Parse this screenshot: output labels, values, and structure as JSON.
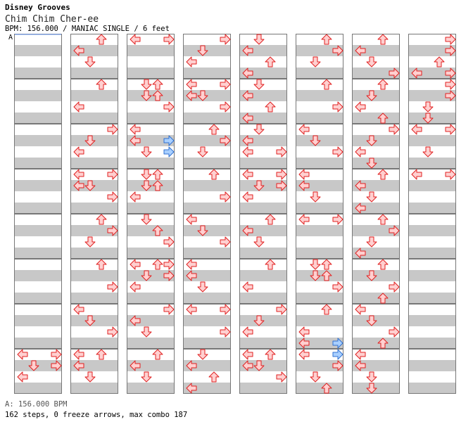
{
  "header": {
    "game": "Disney Grooves",
    "song": "Chim Chim Cher-ee",
    "info": "BPM: 156.000 / MANIAC SINGLE / 6 feet"
  },
  "section_marker": "A",
  "legend": {
    "bpm": "A: 156.000 BPM"
  },
  "stats": {
    "line": "162 steps, 0 freeze arrows, max combo 187",
    "steps": 162,
    "freeze_arrows": 0,
    "max_combo": 187
  },
  "colors": {
    "stripe": "#c8c8c8",
    "border": "#777777",
    "arrow_fill": "#ffd0d0",
    "arrow_stroke": "#e02020",
    "blue_fill": "#a8cfff",
    "blue_stroke": "#3070d0"
  },
  "chart_data": {
    "type": "step-chart",
    "columns": 8,
    "measures_per_column": 8,
    "lanes": [
      "left",
      "down",
      "up",
      "right"
    ],
    "rows_per_measure": 4,
    "notes": [
      {
        "c": 0,
        "m": 7,
        "r": 0,
        "l": "left"
      },
      {
        "c": 0,
        "m": 7,
        "r": 0,
        "l": "right"
      },
      {
        "c": 0,
        "m": 7,
        "r": 1,
        "l": "down"
      },
      {
        "c": 0,
        "m": 7,
        "r": 1,
        "l": "right"
      },
      {
        "c": 0,
        "m": 7,
        "r": 2,
        "l": "left"
      },
      {
        "c": 1,
        "m": 0,
        "r": 0,
        "l": "up"
      },
      {
        "c": 1,
        "m": 0,
        "r": 1,
        "l": "left"
      },
      {
        "c": 1,
        "m": 0,
        "r": 2,
        "l": "down"
      },
      {
        "c": 1,
        "m": 1,
        "r": 0,
        "l": "up"
      },
      {
        "c": 1,
        "m": 1,
        "r": 2,
        "l": "left"
      },
      {
        "c": 1,
        "m": 2,
        "r": 0,
        "l": "right"
      },
      {
        "c": 1,
        "m": 2,
        "r": 1,
        "l": "down"
      },
      {
        "c": 1,
        "m": 2,
        "r": 2,
        "l": "left"
      },
      {
        "c": 1,
        "m": 3,
        "r": 0,
        "l": "left"
      },
      {
        "c": 1,
        "m": 3,
        "r": 0,
        "l": "right"
      },
      {
        "c": 1,
        "m": 3,
        "r": 1,
        "l": "left"
      },
      {
        "c": 1,
        "m": 3,
        "r": 1,
        "l": "down"
      },
      {
        "c": 1,
        "m": 3,
        "r": 2,
        "l": "right"
      },
      {
        "c": 1,
        "m": 4,
        "r": 0,
        "l": "up"
      },
      {
        "c": 1,
        "m": 4,
        "r": 1,
        "l": "right"
      },
      {
        "c": 1,
        "m": 4,
        "r": 2,
        "l": "down"
      },
      {
        "c": 1,
        "m": 5,
        "r": 0,
        "l": "up"
      },
      {
        "c": 1,
        "m": 5,
        "r": 2,
        "l": "right"
      },
      {
        "c": 1,
        "m": 6,
        "r": 0,
        "l": "left"
      },
      {
        "c": 1,
        "m": 6,
        "r": 1,
        "l": "down"
      },
      {
        "c": 1,
        "m": 6,
        "r": 2,
        "l": "right"
      },
      {
        "c": 1,
        "m": 7,
        "r": 0,
        "l": "left"
      },
      {
        "c": 1,
        "m": 7,
        "r": 0,
        "l": "up"
      },
      {
        "c": 1,
        "m": 7,
        "r": 1,
        "l": "left"
      },
      {
        "c": 1,
        "m": 7,
        "r": 2,
        "l": "down"
      },
      {
        "c": 2,
        "m": 0,
        "r": 0,
        "l": "left"
      },
      {
        "c": 2,
        "m": 0,
        "r": 0,
        "l": "right"
      },
      {
        "c": 2,
        "m": 1,
        "r": 0,
        "l": "down"
      },
      {
        "c": 2,
        "m": 1,
        "r": 0,
        "l": "up"
      },
      {
        "c": 2,
        "m": 1,
        "r": 1,
        "l": "down"
      },
      {
        "c": 2,
        "m": 1,
        "r": 1,
        "l": "up"
      },
      {
        "c": 2,
        "m": 1,
        "r": 2,
        "l": "right"
      },
      {
        "c": 2,
        "m": 2,
        "r": 0,
        "l": "left"
      },
      {
        "c": 2,
        "m": 2,
        "r": 1,
        "l": "left"
      },
      {
        "c": 2,
        "m": 2,
        "r": 2,
        "l": "down"
      },
      {
        "c": 2,
        "m": 3,
        "r": 0,
        "l": "down"
      },
      {
        "c": 2,
        "m": 3,
        "r": 0,
        "l": "up"
      },
      {
        "c": 2,
        "m": 3,
        "r": 1,
        "l": "down"
      },
      {
        "c": 2,
        "m": 3,
        "r": 1,
        "l": "up"
      },
      {
        "c": 2,
        "m": 3,
        "r": 2,
        "l": "left"
      },
      {
        "c": 2,
        "m": 4,
        "r": 0,
        "l": "down"
      },
      {
        "c": 2,
        "m": 4,
        "r": 1,
        "l": "up"
      },
      {
        "c": 2,
        "m": 4,
        "r": 2,
        "l": "right"
      },
      {
        "c": 2,
        "m": 5,
        "r": 0,
        "l": "left"
      },
      {
        "c": 2,
        "m": 5,
        "r": 0,
        "l": "up"
      },
      {
        "c": 2,
        "m": 5,
        "r": 0,
        "l": "right"
      },
      {
        "c": 2,
        "m": 5,
        "r": 1,
        "l": "down"
      },
      {
        "c": 2,
        "m": 5,
        "r": 1,
        "l": "right"
      },
      {
        "c": 2,
        "m": 5,
        "r": 2,
        "l": "left"
      },
      {
        "c": 2,
        "m": 6,
        "r": 0,
        "l": "right"
      },
      {
        "c": 2,
        "m": 6,
        "r": 1,
        "l": "left"
      },
      {
        "c": 2,
        "m": 6,
        "r": 2,
        "l": "down"
      },
      {
        "c": 2,
        "m": 7,
        "r": 0,
        "l": "up"
      },
      {
        "c": 2,
        "m": 7,
        "r": 1,
        "l": "left"
      },
      {
        "c": 2,
        "m": 7,
        "r": 2,
        "l": "down"
      },
      {
        "c": 3,
        "m": 0,
        "r": 0,
        "l": "right"
      },
      {
        "c": 3,
        "m": 0,
        "r": 1,
        "l": "down"
      },
      {
        "c": 3,
        "m": 0,
        "r": 2,
        "l": "left"
      },
      {
        "c": 3,
        "m": 1,
        "r": 0,
        "l": "left"
      },
      {
        "c": 3,
        "m": 1,
        "r": 0,
        "l": "right"
      },
      {
        "c": 3,
        "m": 1,
        "r": 1,
        "l": "left"
      },
      {
        "c": 3,
        "m": 1,
        "r": 1,
        "l": "down"
      },
      {
        "c": 3,
        "m": 1,
        "r": 2,
        "l": "right"
      },
      {
        "c": 3,
        "m": 2,
        "r": 0,
        "l": "up"
      },
      {
        "c": 3,
        "m": 2,
        "r": 1,
        "l": "right"
      },
      {
        "c": 3,
        "m": 2,
        "r": 2,
        "l": "down"
      },
      {
        "c": 3,
        "m": 3,
        "r": 0,
        "l": "up"
      },
      {
        "c": 3,
        "m": 3,
        "r": 2,
        "l": "right"
      },
      {
        "c": 3,
        "m": 4,
        "r": 0,
        "l": "left"
      },
      {
        "c": 3,
        "m": 4,
        "r": 1,
        "l": "down"
      },
      {
        "c": 3,
        "m": 4,
        "r": 2,
        "l": "right"
      },
      {
        "c": 3,
        "m": 5,
        "r": 0,
        "l": "left"
      },
      {
        "c": 3,
        "m": 5,
        "r": 1,
        "l": "left"
      },
      {
        "c": 3,
        "m": 5,
        "r": 2,
        "l": "down"
      },
      {
        "c": 3,
        "m": 6,
        "r": 0,
        "l": "left"
      },
      {
        "c": 3,
        "m": 6,
        "r": 0,
        "l": "right"
      },
      {
        "c": 3,
        "m": 6,
        "r": 2,
        "l": "right"
      },
      {
        "c": 3,
        "m": 7,
        "r": 0,
        "l": "down"
      },
      {
        "c": 3,
        "m": 7,
        "r": 1,
        "l": "left"
      },
      {
        "c": 3,
        "m": 7,
        "r": 2,
        "l": "up"
      },
      {
        "c": 3,
        "m": 7,
        "r": 3,
        "l": "left"
      },
      {
        "c": 4,
        "m": 0,
        "r": 0,
        "l": "down"
      },
      {
        "c": 4,
        "m": 0,
        "r": 1,
        "l": "left"
      },
      {
        "c": 4,
        "m": 0,
        "r": 2,
        "l": "up"
      },
      {
        "c": 4,
        "m": 0,
        "r": 3,
        "l": "left"
      },
      {
        "c": 4,
        "m": 1,
        "r": 0,
        "l": "down"
      },
      {
        "c": 4,
        "m": 1,
        "r": 1,
        "l": "left"
      },
      {
        "c": 4,
        "m": 1,
        "r": 2,
        "l": "up"
      },
      {
        "c": 4,
        "m": 1,
        "r": 3,
        "l": "left"
      },
      {
        "c": 4,
        "m": 2,
        "r": 0,
        "l": "down"
      },
      {
        "c": 4,
        "m": 2,
        "r": 1,
        "l": "left"
      },
      {
        "c": 4,
        "m": 2,
        "r": 2,
        "l": "left"
      },
      {
        "c": 4,
        "m": 2,
        "r": 2,
        "l": "right"
      },
      {
        "c": 4,
        "m": 3,
        "r": 0,
        "l": "left"
      },
      {
        "c": 4,
        "m": 3,
        "r": 0,
        "l": "right"
      },
      {
        "c": 4,
        "m": 3,
        "r": 1,
        "l": "down"
      },
      {
        "c": 4,
        "m": 3,
        "r": 1,
        "l": "right"
      },
      {
        "c": 4,
        "m": 3,
        "r": 2,
        "l": "left"
      },
      {
        "c": 4,
        "m": 4,
        "r": 0,
        "l": "up"
      },
      {
        "c": 4,
        "m": 4,
        "r": 1,
        "l": "left"
      },
      {
        "c": 4,
        "m": 4,
        "r": 2,
        "l": "down"
      },
      {
        "c": 4,
        "m": 5,
        "r": 0,
        "l": "up"
      },
      {
        "c": 4,
        "m": 5,
        "r": 2,
        "l": "left"
      },
      {
        "c": 4,
        "m": 6,
        "r": 0,
        "l": "right"
      },
      {
        "c": 4,
        "m": 6,
        "r": 1,
        "l": "down"
      },
      {
        "c": 4,
        "m": 6,
        "r": 2,
        "l": "left"
      },
      {
        "c": 4,
        "m": 7,
        "r": 0,
        "l": "left"
      },
      {
        "c": 4,
        "m": 7,
        "r": 0,
        "l": "up"
      },
      {
        "c": 4,
        "m": 7,
        "r": 1,
        "l": "left"
      },
      {
        "c": 4,
        "m": 7,
        "r": 1,
        "l": "down"
      },
      {
        "c": 4,
        "m": 7,
        "r": 2,
        "l": "right"
      },
      {
        "c": 5,
        "m": 0,
        "r": 0,
        "l": "up"
      },
      {
        "c": 5,
        "m": 0,
        "r": 1,
        "l": "right"
      },
      {
        "c": 5,
        "m": 0,
        "r": 2,
        "l": "down"
      },
      {
        "c": 5,
        "m": 1,
        "r": 0,
        "l": "up"
      },
      {
        "c": 5,
        "m": 1,
        "r": 2,
        "l": "right"
      },
      {
        "c": 5,
        "m": 2,
        "r": 0,
        "l": "left"
      },
      {
        "c": 5,
        "m": 2,
        "r": 1,
        "l": "down"
      },
      {
        "c": 5,
        "m": 2,
        "r": 2,
        "l": "right"
      },
      {
        "c": 5,
        "m": 3,
        "r": 0,
        "l": "left"
      },
      {
        "c": 5,
        "m": 3,
        "r": 1,
        "l": "left"
      },
      {
        "c": 5,
        "m": 3,
        "r": 2,
        "l": "down"
      },
      {
        "c": 5,
        "m": 4,
        "r": 0,
        "l": "left"
      },
      {
        "c": 5,
        "m": 4,
        "r": 0,
        "l": "right"
      },
      {
        "c": 5,
        "m": 5,
        "r": 0,
        "l": "down"
      },
      {
        "c": 5,
        "m": 5,
        "r": 0,
        "l": "up"
      },
      {
        "c": 5,
        "m": 5,
        "r": 1,
        "l": "down"
      },
      {
        "c": 5,
        "m": 5,
        "r": 1,
        "l": "up"
      },
      {
        "c": 5,
        "m": 5,
        "r": 2,
        "l": "right"
      },
      {
        "c": 5,
        "m": 6,
        "r": 0,
        "l": "up"
      },
      {
        "c": 5,
        "m": 6,
        "r": 2,
        "l": "left"
      },
      {
        "c": 5,
        "m": 6,
        "r": 3,
        "l": "left"
      },
      {
        "c": 5,
        "m": 7,
        "r": 0,
        "l": "left"
      },
      {
        "c": 5,
        "m": 7,
        "r": 1,
        "l": "right"
      },
      {
        "c": 5,
        "m": 7,
        "r": 2,
        "l": "down"
      },
      {
        "c": 5,
        "m": 7,
        "r": 3,
        "l": "up"
      },
      {
        "c": 6,
        "m": 0,
        "r": 0,
        "l": "up"
      },
      {
        "c": 6,
        "m": 0,
        "r": 1,
        "l": "left"
      },
      {
        "c": 6,
        "m": 0,
        "r": 2,
        "l": "down"
      },
      {
        "c": 6,
        "m": 0,
        "r": 3,
        "l": "right"
      },
      {
        "c": 6,
        "m": 1,
        "r": 0,
        "l": "up"
      },
      {
        "c": 6,
        "m": 1,
        "r": 1,
        "l": "down"
      },
      {
        "c": 6,
        "m": 1,
        "r": 2,
        "l": "left"
      },
      {
        "c": 6,
        "m": 1,
        "r": 3,
        "l": "up"
      },
      {
        "c": 6,
        "m": 2,
        "r": 0,
        "l": "right"
      },
      {
        "c": 6,
        "m": 2,
        "r": 1,
        "l": "down"
      },
      {
        "c": 6,
        "m": 2,
        "r": 2,
        "l": "left"
      },
      {
        "c": 6,
        "m": 2,
        "r": 3,
        "l": "down"
      },
      {
        "c": 6,
        "m": 3,
        "r": 0,
        "l": "up"
      },
      {
        "c": 6,
        "m": 3,
        "r": 1,
        "l": "left"
      },
      {
        "c": 6,
        "m": 3,
        "r": 2,
        "l": "down"
      },
      {
        "c": 6,
        "m": 3,
        "r": 3,
        "l": "left"
      },
      {
        "c": 6,
        "m": 4,
        "r": 0,
        "l": "up"
      },
      {
        "c": 6,
        "m": 4,
        "r": 1,
        "l": "right"
      },
      {
        "c": 6,
        "m": 4,
        "r": 2,
        "l": "down"
      },
      {
        "c": 6,
        "m": 4,
        "r": 3,
        "l": "left"
      },
      {
        "c": 6,
        "m": 5,
        "r": 0,
        "l": "up"
      },
      {
        "c": 6,
        "m": 5,
        "r": 1,
        "l": "down"
      },
      {
        "c": 6,
        "m": 5,
        "r": 2,
        "l": "right"
      },
      {
        "c": 6,
        "m": 5,
        "r": 3,
        "l": "up"
      },
      {
        "c": 6,
        "m": 6,
        "r": 0,
        "l": "left"
      },
      {
        "c": 6,
        "m": 6,
        "r": 1,
        "l": "down"
      },
      {
        "c": 6,
        "m": 6,
        "r": 2,
        "l": "right"
      },
      {
        "c": 6,
        "m": 6,
        "r": 3,
        "l": "up"
      },
      {
        "c": 6,
        "m": 7,
        "r": 0,
        "l": "left"
      },
      {
        "c": 6,
        "m": 7,
        "r": 1,
        "l": "left"
      },
      {
        "c": 6,
        "m": 7,
        "r": 2,
        "l": "down"
      },
      {
        "c": 6,
        "m": 7,
        "r": 3,
        "l": "down"
      },
      {
        "c": 7,
        "m": 0,
        "r": 0,
        "l": "right"
      },
      {
        "c": 7,
        "m": 0,
        "r": 1,
        "l": "right"
      },
      {
        "c": 7,
        "m": 0,
        "r": 2,
        "l": "up"
      },
      {
        "c": 7,
        "m": 0,
        "r": 3,
        "l": "left"
      },
      {
        "c": 7,
        "m": 0,
        "r": 3,
        "l": "right"
      },
      {
        "c": 7,
        "m": 1,
        "r": 0,
        "l": "right"
      },
      {
        "c": 7,
        "m": 1,
        "r": 1,
        "l": "right"
      },
      {
        "c": 7,
        "m": 1,
        "r": 2,
        "l": "down"
      },
      {
        "c": 7,
        "m": 1,
        "r": 3,
        "l": "down"
      },
      {
        "c": 7,
        "m": 2,
        "r": 0,
        "l": "left"
      },
      {
        "c": 7,
        "m": 2,
        "r": 0,
        "l": "right"
      },
      {
        "c": 7,
        "m": 2,
        "r": 2,
        "l": "down"
      },
      {
        "c": 7,
        "m": 3,
        "r": 0,
        "l": "left"
      },
      {
        "c": 7,
        "m": 3,
        "r": 0,
        "l": "right"
      }
    ],
    "blue_notes": [
      {
        "c": 2,
        "m": 2,
        "r": 1,
        "l": "right"
      },
      {
        "c": 2,
        "m": 2,
        "r": 2,
        "l": "right"
      },
      {
        "c": 5,
        "m": 6,
        "r": 3,
        "l": "right"
      },
      {
        "c": 5,
        "m": 6,
        "r": 4,
        "l": "right"
      }
    ]
  }
}
